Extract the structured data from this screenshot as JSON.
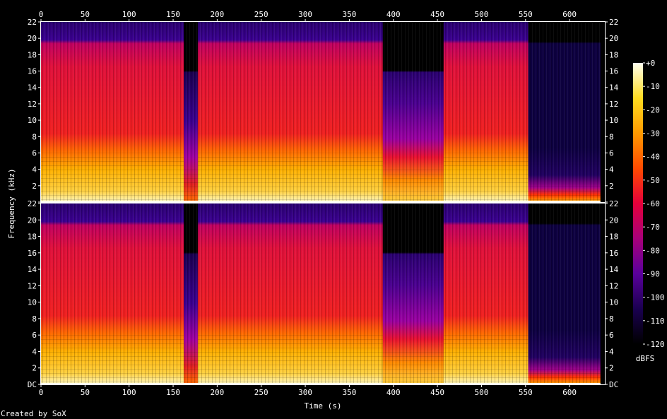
{
  "chart_data": {
    "type": "heatmap",
    "title": "",
    "xlabel": "Time (s)",
    "ylabel": "Frequency (kHz)",
    "xlim": [
      0,
      640
    ],
    "x_ticks": [
      0,
      50,
      100,
      150,
      200,
      250,
      300,
      350,
      400,
      450,
      500,
      550,
      600
    ],
    "x_tick_labels": [
      "0",
      "50",
      "100",
      "150",
      "200",
      "250",
      "300",
      "350",
      "400",
      "450",
      "500",
      "550",
      "600"
    ],
    "ylim": [
      0,
      22
    ],
    "y_ticks": [
      0,
      2,
      4,
      6,
      8,
      10,
      12,
      14,
      16,
      18,
      20,
      22
    ],
    "y_tick_labels_top_channel": [
      "",
      "2",
      "4",
      "6",
      "8",
      "10",
      "12",
      "14",
      "16",
      "18",
      "20",
      "22"
    ],
    "y_tick_labels_bottom_channel": [
      "DC",
      "2",
      "4",
      "6",
      "8",
      "10",
      "12",
      "14",
      "16",
      "18",
      "20",
      "22"
    ],
    "channels": 2,
    "colorbar": {
      "label": "dBFS",
      "range": [
        -120,
        0
      ],
      "ticks": [
        0,
        -10,
        -20,
        -30,
        -40,
        -50,
        -60,
        -70,
        -80,
        -90,
        -100,
        -110,
        -120
      ],
      "tick_labels": [
        "+0",
        "-10",
        "-20",
        "-30",
        "-40",
        "-50",
        "-60",
        "-70",
        "-80",
        "-90",
        "-100",
        "-110",
        "-120"
      ],
      "colors": [
        "#000000",
        "#1a0050",
        "#5a009c",
        "#a8007a",
        "#e4003a",
        "#ff4a00",
        "#ff9a00",
        "#ffdc20",
        "#fffff0"
      ]
    },
    "segments": [
      {
        "start": 0,
        "end": 162,
        "cutoff_khz": 20,
        "loud_khz": 6,
        "level": "loud"
      },
      {
        "start": 162,
        "end": 178,
        "cutoff_khz": 16,
        "loud_khz": 4,
        "level": "quiet"
      },
      {
        "start": 178,
        "end": 388,
        "cutoff_khz": 20,
        "loud_khz": 6,
        "level": "loud"
      },
      {
        "start": 388,
        "end": 457,
        "cutoff_khz": 16,
        "loud_khz": 4,
        "level": "medium"
      },
      {
        "start": 457,
        "end": 553,
        "cutoff_khz": 20,
        "loud_khz": 6,
        "level": "loud"
      },
      {
        "start": 553,
        "end": 635,
        "cutoff_khz": 19.5,
        "loud_khz": 2,
        "level": "faint"
      }
    ]
  },
  "footer": {
    "credit": "Created by SoX"
  }
}
